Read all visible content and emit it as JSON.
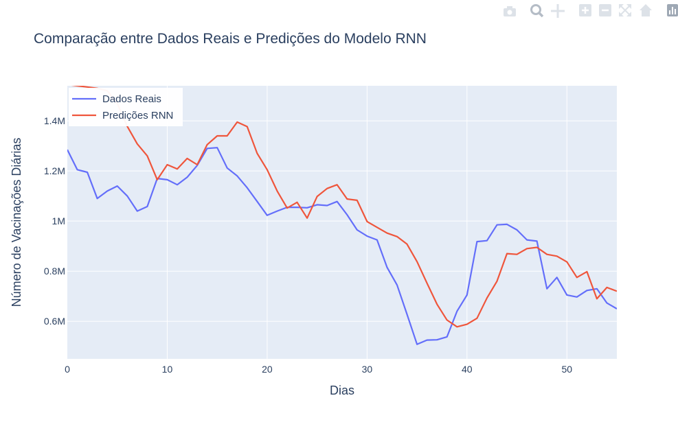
{
  "modebar": {
    "buttons": [
      "camera-icon",
      "zoom-icon",
      "pan-icon",
      "zoom-in-icon",
      "zoom-out-icon",
      "autoscale-icon",
      "home-icon",
      "plotly-logo-icon"
    ]
  },
  "colors": {
    "plot_bg": "#e5ecf6",
    "grid": "#ffffff",
    "text": "#2a3f5f",
    "series_real": "#636efa",
    "series_pred": "#ef553b"
  },
  "chart_data": {
    "type": "line",
    "title": "Comparação entre Dados Reais e Predições do Modelo RNN",
    "xlabel": "Dias",
    "ylabel": "Número de Vacinações Diárias",
    "xlim": [
      0,
      55
    ],
    "ylim": [
      450000,
      1540000
    ],
    "xticks": [
      0,
      10,
      20,
      30,
      40,
      50
    ],
    "yticks": [
      600000,
      800000,
      1000000,
      1200000,
      1400000
    ],
    "ytick_labels": [
      "0.6M",
      "0.8M",
      "1M",
      "1.2M",
      "1.4M"
    ],
    "grid": true,
    "legend_position": "top-left",
    "series": [
      {
        "name": "Dados Reais",
        "color": "#636efa",
        "x": [
          0,
          1,
          2,
          3,
          4,
          5,
          6,
          7,
          8,
          9,
          10,
          11,
          12,
          13,
          14,
          15,
          16,
          17,
          18,
          19,
          20,
          21,
          22,
          23,
          24,
          25,
          26,
          27,
          28,
          29,
          30,
          31,
          32,
          33,
          34,
          35,
          36,
          37,
          38,
          39,
          40,
          41,
          42,
          43,
          44,
          45,
          46,
          47,
          48,
          49,
          50,
          51,
          52,
          53,
          54,
          55
        ],
        "values": [
          1285000,
          1205000,
          1195000,
          1090000,
          1120000,
          1140000,
          1100000,
          1040000,
          1058000,
          1170000,
          1165000,
          1145000,
          1175000,
          1222000,
          1290000,
          1293000,
          1212000,
          1180000,
          1133000,
          1078000,
          1023000,
          1040000,
          1055000,
          1055000,
          1053000,
          1065000,
          1062000,
          1078000,
          1025000,
          965000,
          940000,
          925000,
          815000,
          745000,
          628000,
          508000,
          525000,
          526000,
          538000,
          640000,
          705000,
          918000,
          922000,
          985000,
          987000,
          965000,
          925000,
          920000,
          730000,
          775000,
          705000,
          697000,
          723000,
          730000,
          673000,
          650000
        ]
      },
      {
        "name": "Predições RNN",
        "color": "#ef553b",
        "x": [
          0,
          1,
          2,
          3,
          4,
          5,
          6,
          7,
          8,
          9,
          10,
          11,
          12,
          13,
          14,
          15,
          16,
          17,
          18,
          19,
          20,
          21,
          22,
          23,
          24,
          25,
          26,
          27,
          28,
          29,
          30,
          31,
          32,
          33,
          34,
          35,
          36,
          37,
          38,
          39,
          40,
          41,
          42,
          43,
          44,
          45,
          46,
          47,
          48,
          49,
          50,
          51,
          52,
          53,
          54,
          55
        ],
        "values": [
          1545000,
          1540000,
          1535000,
          1530000,
          1520000,
          1470000,
          1378000,
          1308000,
          1260000,
          1165000,
          1225000,
          1208000,
          1250000,
          1225000,
          1305000,
          1340000,
          1340000,
          1395000,
          1377000,
          1270000,
          1205000,
          1120000,
          1052000,
          1075000,
          1012000,
          1098000,
          1130000,
          1145000,
          1088000,
          1083000,
          998000,
          975000,
          952000,
          938000,
          908000,
          838000,
          752000,
          668000,
          605000,
          578000,
          588000,
          612000,
          693000,
          760000,
          870000,
          867000,
          890000,
          895000,
          867000,
          860000,
          837000,
          775000,
          798000,
          690000,
          735000,
          720000
        ]
      }
    ]
  }
}
